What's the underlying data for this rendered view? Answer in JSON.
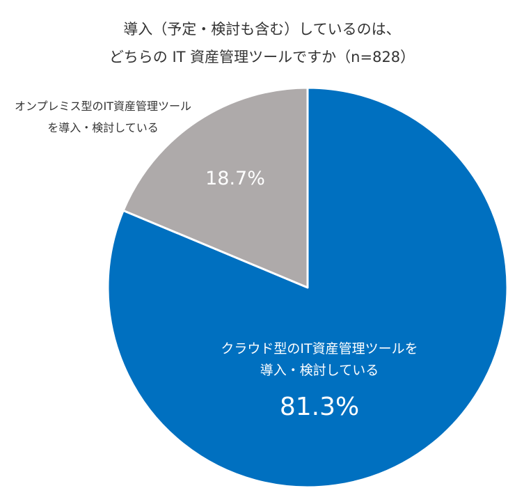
{
  "title": {
    "line1": "導入（予定・検討も含む）しているのは、",
    "line2": "どちらの IT 資産管理ツールですか（n=828）"
  },
  "chart_data": {
    "type": "pie",
    "start": "12 o'clock",
    "direction": "clockwise",
    "slices": [
      {
        "label_lines": [
          "クラウド型のIT資産管理ツールを",
          "導入・検討している"
        ],
        "value": 81.3,
        "value_label": "81.3%",
        "color": "#0070C0",
        "label_color": "#ffffff",
        "label_placement": "inside"
      },
      {
        "label_lines": [
          "オンプレミス型のIT資産管理ツール",
          "を導入・検討している"
        ],
        "value": 18.7,
        "value_label": "18.7%",
        "color": "#AEAAAA",
        "label_color": "#ffffff",
        "label_placement": "outside-top-left"
      }
    ]
  }
}
